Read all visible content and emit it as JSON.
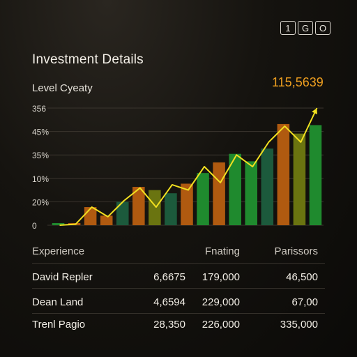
{
  "toolbar": {
    "icons": [
      {
        "name": "one-icon",
        "glyph": "1"
      },
      {
        "name": "g-icon",
        "glyph": "G"
      },
      {
        "name": "o-icon",
        "glyph": "O"
      }
    ]
  },
  "header": {
    "title": "Investment Details",
    "subtitle": "Level Cyeaty",
    "headline_value": "115,5639"
  },
  "chart_data": {
    "type": "bar",
    "title": "",
    "xlabel": "",
    "ylabel": "",
    "yticks": [
      "356",
      "45%",
      "35%",
      "10%",
      "20%",
      "0"
    ],
    "grid": true,
    "colors": {
      "green": "#1f8a2e",
      "orange": "#b05a10",
      "olive": "#6a7410",
      "teal": "#1c5a3c",
      "line": "#f2e020"
    },
    "bars": [
      {
        "value": 2,
        "color": "green"
      },
      {
        "value": 2,
        "color": "orange"
      },
      {
        "value": 17,
        "color": "orange"
      },
      {
        "value": 9,
        "color": "orange"
      },
      {
        "value": 22,
        "color": "teal"
      },
      {
        "value": 36,
        "color": "orange"
      },
      {
        "value": 33,
        "color": "olive"
      },
      {
        "value": 30,
        "color": "teal"
      },
      {
        "value": 39,
        "color": "orange"
      },
      {
        "value": 49,
        "color": "green"
      },
      {
        "value": 59,
        "color": "orange"
      },
      {
        "value": 67,
        "color": "green"
      },
      {
        "value": 60,
        "color": "green"
      },
      {
        "value": 72,
        "color": "teal"
      },
      {
        "value": 95,
        "color": "orange"
      },
      {
        "value": 86,
        "color": "olive"
      },
      {
        "value": 94,
        "color": "green"
      }
    ],
    "line": [
      0,
      1,
      17,
      8,
      23,
      35,
      17,
      38,
      33,
      55,
      40,
      66,
      55,
      78,
      93,
      78,
      110
    ],
    "ylim": [
      0,
      110
    ]
  },
  "table": {
    "headers": [
      "Experience",
      "",
      "Fnating",
      "Parissors"
    ],
    "rows": [
      [
        "David Repler",
        "6,6675",
        "179,000",
        "46,500"
      ],
      [
        "Dean Land",
        "4,6594",
        "229,000",
        "67,00"
      ],
      [
        "Trenl Pagio",
        "28,350",
        "226,000",
        "335,000"
      ]
    ]
  }
}
